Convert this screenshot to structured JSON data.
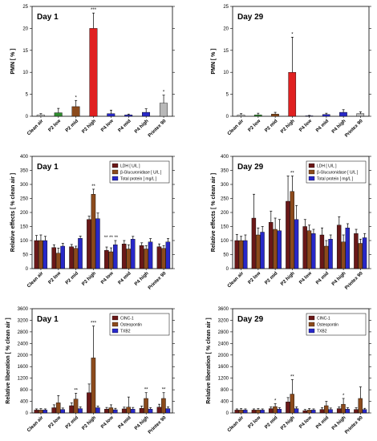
{
  "colors": {
    "red": "#e02020",
    "green": "#2e8b2e",
    "brown": "#8b4a1c",
    "blue": "#2828c8",
    "gray": "#b8b8b8",
    "maroon": "#6a1818"
  },
  "chart_data": [
    {
      "type": "bar",
      "title": "Day 1",
      "ylabel": "PMN [ % ]",
      "ylim": [
        0,
        25
      ],
      "yticks": [
        0,
        5,
        10,
        15,
        20,
        25
      ],
      "categories": [
        "Clean air",
        "P2 low",
        "P2 mid",
        "P2 high",
        "P4 low",
        "P4 mid",
        "P4 high",
        "Printex 90"
      ],
      "series": [
        {
          "values": [
            0.3,
            0.8,
            2.2,
            20.0,
            0.6,
            0.3,
            0.9,
            3.0
          ],
          "errors": [
            0.3,
            1.0,
            1.4,
            3.5,
            0.8,
            0.2,
            0.8,
            1.8
          ],
          "colors": [
            "#cccccc",
            "#2e8b2e",
            "#8b4a1c",
            "#e02020",
            "#2828c8",
            "#2828c8",
            "#2828c8",
            "#b8b8b8"
          ]
        }
      ],
      "annotations": [
        "",
        "",
        "*",
        "***",
        "",
        "",
        "",
        "*"
      ]
    },
    {
      "type": "bar",
      "title": "Day 29",
      "ylabel": "PMN [ % ]",
      "ylim": [
        0,
        25
      ],
      "yticks": [
        0,
        5,
        10,
        15,
        20,
        25
      ],
      "categories": [
        "Clean air",
        "P2 low",
        "P2 mid",
        "P2 high",
        "P4 low",
        "P4 mid",
        "P4 high",
        "Printex 90"
      ],
      "series": [
        {
          "values": [
            0.3,
            0.3,
            0.5,
            10.0,
            0.1,
            0.4,
            0.9,
            0.6
          ],
          "errors": [
            0.3,
            0.4,
            0.4,
            8.0,
            0.1,
            0.3,
            0.6,
            0.4
          ],
          "colors": [
            "#cccccc",
            "#2e8b2e",
            "#8b4a1c",
            "#e02020",
            "#2828c8",
            "#2828c8",
            "#2828c8",
            "#b8b8b8"
          ]
        }
      ],
      "annotations": [
        "",
        "",
        "",
        "*",
        "",
        "",
        "",
        ""
      ]
    },
    {
      "type": "bar",
      "title": "Day 1",
      "ylabel": "Relative effects [ % clean air ]",
      "ylim": [
        0,
        400
      ],
      "yticks": [
        0,
        50,
        100,
        150,
        200,
        250,
        300,
        350,
        400
      ],
      "categories": [
        "Clean air",
        "P2 low",
        "P2 mid",
        "P2 high",
        "P4 low",
        "P4 mid",
        "P4 high",
        "Printex 90"
      ],
      "series": [
        {
          "name": "LDH [ U/L ]",
          "color": "#6a1818",
          "values": [
            100,
            75,
            78,
            175,
            65,
            88,
            82,
            78
          ],
          "errors": [
            18,
            10,
            8,
            12,
            12,
            12,
            10,
            10
          ]
        },
        {
          "name": "β-Glucuronidase [ U/L ]",
          "color": "#8b4a1c",
          "values": [
            100,
            55,
            72,
            265,
            60,
            70,
            70,
            72
          ],
          "errors": [
            20,
            18,
            8,
            18,
            14,
            15,
            12,
            10
          ]
        },
        {
          "name": "Total protein [ mg/L ]",
          "color": "#2828c8",
          "values": [
            100,
            80,
            108,
            178,
            85,
            105,
            95,
            95
          ],
          "errors": [
            15,
            10,
            8,
            20,
            15,
            10,
            12,
            12
          ]
        }
      ],
      "annotations": [
        "",
        "",
        "",
        "**",
        "** ** **",
        "",
        "",
        ""
      ]
    },
    {
      "type": "bar",
      "title": "Day 29",
      "ylabel": "Relative effects [ % clean air ]",
      "ylim": [
        0,
        400
      ],
      "yticks": [
        0,
        50,
        100,
        150,
        200,
        250,
        300,
        350,
        400
      ],
      "categories": [
        "Clean air",
        "P2 low",
        "P2 mid",
        "P2 high",
        "P4 low",
        "P4 mid",
        "P4 high",
        "Printex 90"
      ],
      "series": [
        {
          "name": "LDH [ U/L ]",
          "color": "#6a1818",
          "values": [
            100,
            180,
            165,
            240,
            150,
            120,
            155,
            125
          ],
          "errors": [
            22,
            85,
            40,
            90,
            25,
            25,
            30,
            15
          ]
        },
        {
          "name": "β-Glucuronidase [ U/L ]",
          "color": "#8b4a1c",
          "values": [
            100,
            120,
            140,
            275,
            135,
            80,
            95,
            90
          ],
          "errors": [
            15,
            25,
            40,
            55,
            20,
            20,
            25,
            15
          ]
        },
        {
          "name": "Total protein [ mg/L ]",
          "color": "#2828c8",
          "values": [
            100,
            130,
            135,
            175,
            125,
            105,
            145,
            110
          ],
          "errors": [
            20,
            20,
            40,
            50,
            15,
            15,
            15,
            15
          ]
        }
      ],
      "annotations": [
        "",
        "",
        "",
        "**",
        "",
        "",
        "",
        ""
      ]
    },
    {
      "type": "bar",
      "title": "Day 1",
      "ylabel": "Relative liberation [ % clean air ]",
      "ylim": [
        0,
        3600
      ],
      "yticks": [
        0,
        400,
        800,
        1200,
        1600,
        2000,
        2400,
        2800,
        3200,
        3600
      ],
      "categories": [
        "Clean air",
        "P2 low",
        "P2 mid",
        "P2 high",
        "P4 low",
        "P4 mid",
        "P4 high",
        "Printex 90"
      ],
      "series": [
        {
          "name": "CINC-1",
          "color": "#6a1818",
          "values": [
            100,
            180,
            250,
            700,
            130,
            140,
            160,
            200
          ],
          "errors": [
            40,
            100,
            100,
            300,
            60,
            60,
            80,
            100
          ]
        },
        {
          "name": "Osteopontin",
          "color": "#8b4a1c",
          "values": [
            100,
            350,
            480,
            1900,
            180,
            200,
            500,
            500
          ],
          "errors": [
            50,
            250,
            200,
            1100,
            100,
            350,
            200,
            200
          ]
        },
        {
          "name": "TXB2",
          "color": "#2828c8",
          "values": [
            100,
            120,
            150,
            180,
            110,
            130,
            130,
            150
          ],
          "errors": [
            40,
            50,
            60,
            60,
            50,
            60,
            50,
            60
          ]
        }
      ],
      "annotations": [
        "",
        "",
        "**",
        "***",
        "",
        "",
        "**",
        "**"
      ]
    },
    {
      "type": "bar",
      "title": "Day 29",
      "ylabel": "Relative liberation [ % clean air ]",
      "ylim": [
        0,
        3600
      ],
      "yticks": [
        0,
        400,
        800,
        1200,
        1600,
        2000,
        2400,
        2800,
        3200,
        3600
      ],
      "categories": [
        "Clean air",
        "P2 low",
        "P2 mid",
        "P2 high",
        "P4 low",
        "P4 mid",
        "P4 high",
        "Printex 90"
      ],
      "series": [
        {
          "name": "CINC-1",
          "color": "#6a1818",
          "values": [
            100,
            100,
            150,
            380,
            80,
            120,
            150,
            120
          ],
          "errors": [
            40,
            40,
            60,
            150,
            40,
            60,
            60,
            60
          ]
        },
        {
          "name": "Osteopontin",
          "color": "#8b4a1c",
          "values": [
            100,
            100,
            220,
            650,
            100,
            250,
            300,
            500
          ],
          "errors": [
            50,
            50,
            100,
            500,
            50,
            150,
            200,
            400
          ]
        },
        {
          "name": "TXB2",
          "color": "#2828c8",
          "values": [
            100,
            100,
            130,
            150,
            100,
            120,
            130,
            120
          ],
          "errors": [
            40,
            40,
            50,
            60,
            40,
            50,
            50,
            40
          ]
        }
      ],
      "annotations": [
        "",
        "",
        "*",
        "**",
        "",
        "",
        "*",
        ""
      ]
    }
  ]
}
